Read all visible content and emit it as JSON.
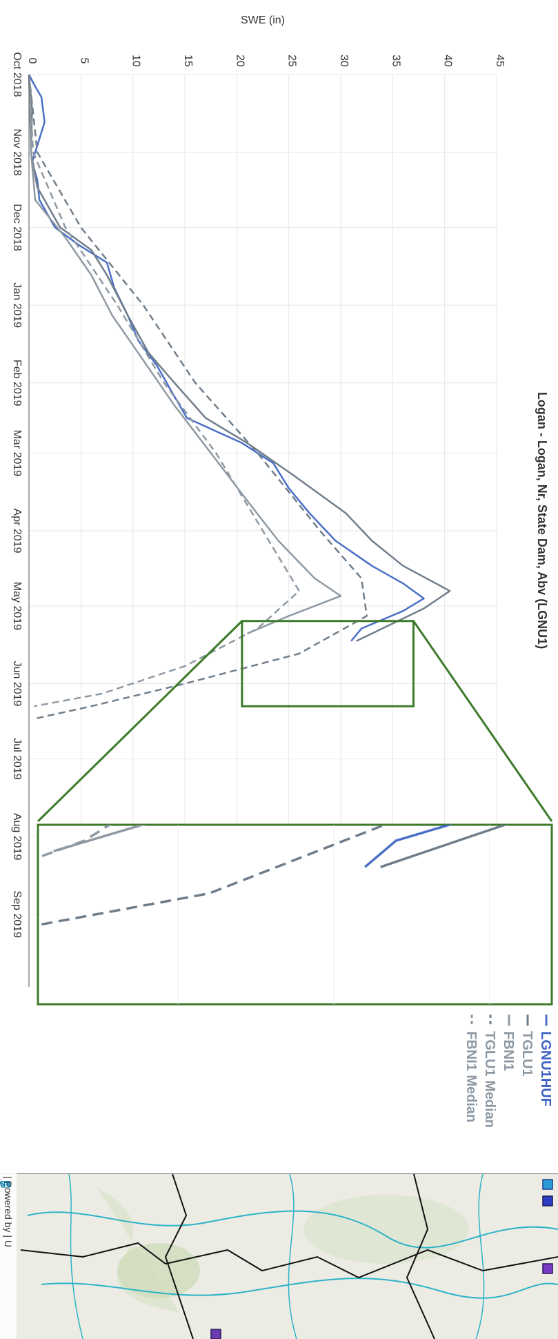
{
  "chart_data": {
    "type": "line",
    "title": "Logan - Logan, Nr, State Dam, Abv (LGNU1)",
    "ylabel": "SWE (in)",
    "xlabel": "",
    "x_ticks": [
      "Oct 2018",
      "Nov 2018",
      "Dec 2018",
      "Jan 2019",
      "Feb 2019",
      "Mar 2019",
      "Apr 2019",
      "May 2019",
      "Jun 2019",
      "Jul 2019",
      "Aug 2019",
      "Sep 2019"
    ],
    "y_ticks": [
      "0",
      "5",
      "10",
      "15",
      "20",
      "25",
      "30",
      "35",
      "40",
      "45"
    ],
    "ylim": [
      0,
      45
    ],
    "grid": true,
    "legend_position": "right",
    "series": [
      {
        "name": "LGNU1HUF",
        "color": "#4a6fc7",
        "dash": "solid",
        "points": [
          [
            "2018-10-01",
            0
          ],
          [
            "2018-10-05",
            0.5
          ],
          [
            "2018-10-10",
            1.2
          ],
          [
            "2018-10-20",
            1.5
          ],
          [
            "2018-10-28",
            0.9
          ],
          [
            "2018-11-05",
            0.3
          ],
          [
            "2018-11-12",
            0.8
          ],
          [
            "2018-11-20",
            1
          ],
          [
            "2018-12-01",
            2.5
          ],
          [
            "2018-12-08",
            4.8
          ],
          [
            "2018-12-15",
            7.5
          ],
          [
            "2018-12-25",
            8.2
          ],
          [
            "2019-01-05",
            9.5
          ],
          [
            "2019-01-15",
            10.5
          ],
          [
            "2019-01-25",
            12.3
          ],
          [
            "2019-02-05",
            13.8
          ],
          [
            "2019-02-15",
            15.2
          ],
          [
            "2019-02-25",
            20.5
          ],
          [
            "2019-03-05",
            23.5
          ],
          [
            "2019-03-15",
            25
          ],
          [
            "2019-03-25",
            27
          ],
          [
            "2019-04-05",
            29.5
          ],
          [
            "2019-04-15",
            33
          ],
          [
            "2019-04-22",
            36
          ],
          [
            "2019-04-28",
            38
          ],
          [
            "2019-05-03",
            36
          ],
          [
            "2019-05-10",
            32
          ],
          [
            "2019-05-15",
            31
          ]
        ]
      },
      {
        "name": "TGLU1",
        "color": "#6f7d8a",
        "dash": "solid",
        "points": [
          [
            "2018-10-01",
            0
          ],
          [
            "2018-10-15",
            0.3
          ],
          [
            "2018-11-01",
            0.2
          ],
          [
            "2018-11-15",
            0.8
          ],
          [
            "2018-12-01",
            3
          ],
          [
            "2018-12-10",
            6
          ],
          [
            "2018-12-20",
            7.5
          ],
          [
            "2019-01-05",
            9.5
          ],
          [
            "2019-01-20",
            11.5
          ],
          [
            "2019-02-01",
            14
          ],
          [
            "2019-02-15",
            17
          ],
          [
            "2019-02-25",
            21
          ],
          [
            "2019-03-10",
            25.5
          ],
          [
            "2019-03-25",
            30.5
          ],
          [
            "2019-04-05",
            33
          ],
          [
            "2019-04-15",
            36
          ],
          [
            "2019-04-25",
            40.5
          ],
          [
            "2019-05-02",
            38
          ],
          [
            "2019-05-10",
            34
          ],
          [
            "2019-05-15",
            31.5
          ]
        ]
      },
      {
        "name": "FBNI1",
        "color": "#8e99a3",
        "dash": "solid",
        "points": [
          [
            "2018-10-01",
            0
          ],
          [
            "2018-11-01",
            0.2
          ],
          [
            "2018-11-20",
            0.6
          ],
          [
            "2018-12-05",
            3.5
          ],
          [
            "2018-12-20",
            6
          ],
          [
            "2019-01-05",
            8
          ],
          [
            "2019-01-20",
            10.5
          ],
          [
            "2019-02-10",
            14
          ],
          [
            "2019-03-01",
            17.5
          ],
          [
            "2019-03-20",
            21
          ],
          [
            "2019-04-05",
            24
          ],
          [
            "2019-04-20",
            27.5
          ],
          [
            "2019-04-27",
            30
          ],
          [
            "2019-05-05",
            25
          ],
          [
            "2019-05-12",
            21
          ]
        ]
      },
      {
        "name": "TGLU1 Median",
        "color": "#6f7d8a",
        "dash": "dashed",
        "points": [
          [
            "2018-10-01",
            0
          ],
          [
            "2018-11-01",
            0.8
          ],
          [
            "2018-12-01",
            5
          ],
          [
            "2019-01-01",
            11
          ],
          [
            "2019-02-01",
            16
          ],
          [
            "2019-03-01",
            22
          ],
          [
            "2019-04-01",
            28
          ],
          [
            "2019-04-20",
            32
          ],
          [
            "2019-05-05",
            32.5
          ],
          [
            "2019-05-20",
            26
          ],
          [
            "2019-06-01",
            15
          ],
          [
            "2019-06-10",
            6
          ],
          [
            "2019-06-15",
            0.5
          ]
        ]
      },
      {
        "name": "FBNI1 Median",
        "color": "#8e99a3",
        "dash": "dashed",
        "points": [
          [
            "2018-10-01",
            0
          ],
          [
            "2018-11-01",
            0.4
          ],
          [
            "2018-12-01",
            3.5
          ],
          [
            "2019-01-01",
            8.5
          ],
          [
            "2019-02-01",
            13
          ],
          [
            "2019-03-01",
            18
          ],
          [
            "2019-04-01",
            22.5
          ],
          [
            "2019-04-25",
            26
          ],
          [
            "2019-05-10",
            22
          ],
          [
            "2019-05-25",
            15
          ],
          [
            "2019-06-05",
            7
          ],
          [
            "2019-06-10",
            0.5
          ]
        ]
      }
    ]
  }
}
